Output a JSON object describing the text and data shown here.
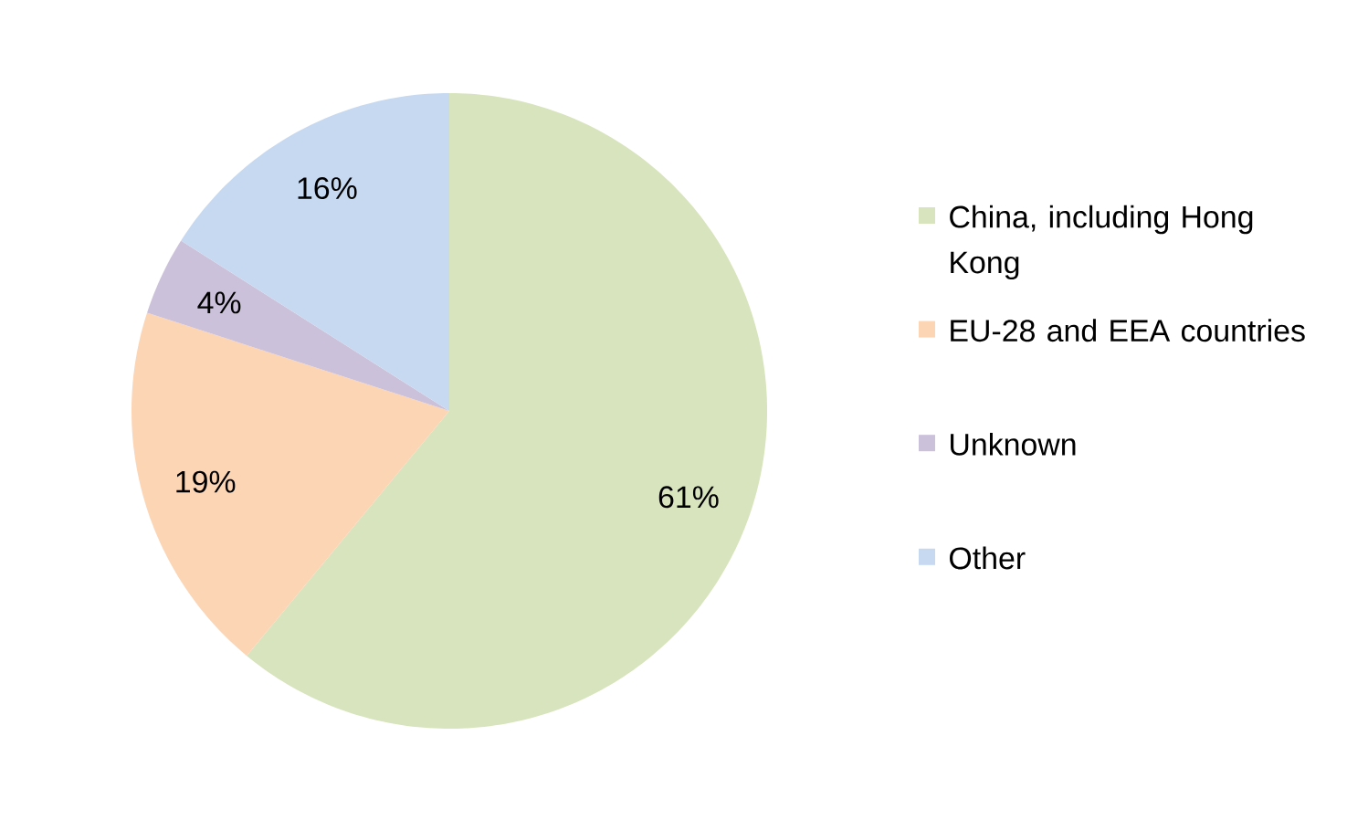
{
  "chart_data": {
    "type": "pie",
    "categories": [
      "China, including Hong Kong",
      "EU-28 and EEA countries",
      "Unknown",
      "Other"
    ],
    "values": [
      61,
      19,
      4,
      16
    ],
    "colors": [
      "#d7e4bd",
      "#fcd5b5",
      "#ccc1da",
      "#c6d9f1"
    ],
    "value_labels": [
      "61%",
      "19%",
      "4%",
      "16%"
    ],
    "legend": "right"
  }
}
